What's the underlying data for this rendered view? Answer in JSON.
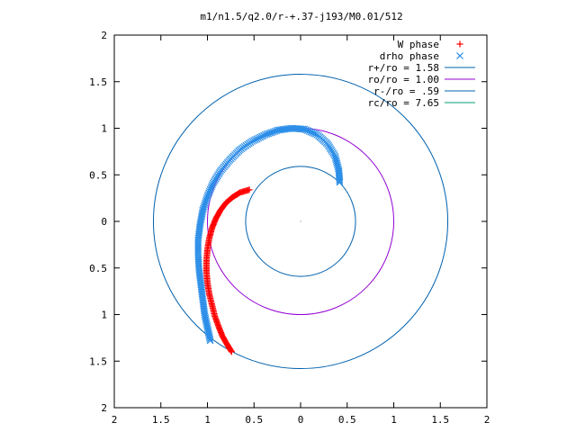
{
  "chart_data": {
    "type": "scatter",
    "title": "m1/n1.5/q2.0/r-+.37-j193/M0.01/512",
    "xlabel": "",
    "ylabel": "",
    "xlim": [
      2,
      -2
    ],
    "ylim": [
      -2,
      2
    ],
    "x_ticks": [
      "2",
      "1.5",
      "1",
      "0.5",
      "0",
      "0.5",
      "1",
      "1.5",
      "2"
    ],
    "y_ticks": [
      "2",
      "1.5",
      "1",
      "0.5",
      "0",
      "0.5",
      "1",
      "1.5",
      "2"
    ],
    "x_tick_values": [
      2,
      1.5,
      1,
      0.5,
      0,
      -0.5,
      -1,
      -1.5,
      -2
    ],
    "y_tick_values": [
      2,
      1.5,
      1,
      0.5,
      0,
      -0.5,
      -1,
      -1.5,
      -2
    ],
    "grid": false,
    "legend_position": "top-right",
    "circles": [
      {
        "label": "r+/ro = 1.58",
        "radius": 1.58,
        "color": "#0060ad"
      },
      {
        "label": "ro/ro = 1.00",
        "radius": 1.0,
        "color": "#9400d3"
      },
      {
        "label": "r-/ro = .59",
        "radius": 0.59,
        "color": "#0060ad"
      },
      {
        "label": "rc/ro = 7.65",
        "radius": 7.65,
        "color": "#009e73"
      }
    ],
    "series": [
      {
        "name": "W phase",
        "marker": "+",
        "color": "#ff0000",
        "points": [
          [
            0.55,
            0.34
          ],
          [
            0.65,
            0.31
          ],
          [
            0.73,
            0.26
          ],
          [
            0.8,
            0.2
          ],
          [
            0.86,
            0.12
          ],
          [
            0.91,
            0.03
          ],
          [
            0.95,
            -0.07
          ],
          [
            0.98,
            -0.18
          ],
          [
            1.0,
            -0.3
          ],
          [
            1.01,
            -0.42
          ],
          [
            1.01,
            -0.54
          ],
          [
            1.0,
            -0.66
          ],
          [
            0.98,
            -0.78
          ],
          [
            0.95,
            -0.9
          ],
          [
            0.92,
            -1.02
          ],
          [
            0.88,
            -1.13
          ],
          [
            0.84,
            -1.23
          ],
          [
            0.79,
            -1.32
          ],
          [
            0.74,
            -1.4
          ]
        ]
      },
      {
        "name": "drho phase",
        "marker": "x",
        "color": "#2b8ee8",
        "points": [
          [
            -0.42,
            0.42
          ],
          [
            -0.41,
            0.55
          ],
          [
            -0.37,
            0.7
          ],
          [
            -0.29,
            0.83
          ],
          [
            -0.18,
            0.93
          ],
          [
            -0.04,
            0.99
          ],
          [
            0.1,
            1.0
          ],
          [
            0.24,
            0.98
          ],
          [
            0.38,
            0.93
          ],
          [
            0.52,
            0.86
          ],
          [
            0.65,
            0.77
          ],
          [
            0.76,
            0.66
          ],
          [
            0.86,
            0.54
          ],
          [
            0.94,
            0.41
          ],
          [
            1.0,
            0.27
          ],
          [
            1.05,
            0.12
          ],
          [
            1.08,
            -0.04
          ],
          [
            1.1,
            -0.2
          ],
          [
            1.1,
            -0.36
          ],
          [
            1.09,
            -0.52
          ],
          [
            1.07,
            -0.68
          ],
          [
            1.05,
            -0.84
          ],
          [
            1.03,
            -1.0
          ],
          [
            1.0,
            -1.14
          ],
          [
            0.97,
            -1.28
          ]
        ]
      }
    ]
  }
}
